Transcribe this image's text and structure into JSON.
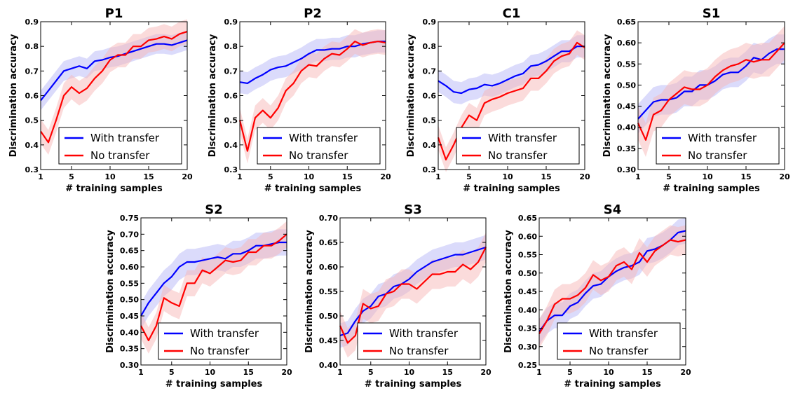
{
  "figure": {
    "ylabel": "Discrimination accuracy",
    "xlabel": "# training samples",
    "legend": [
      "With transfer",
      "No transfer"
    ],
    "colors": {
      "with_transfer": "#0000ff",
      "no_transfer": "#ff0000",
      "with_band": "#b8b8f8",
      "no_band": "#f8b8b8"
    }
  },
  "chart_data": [
    {
      "type": "line",
      "title": "P1",
      "xlabel": "# training samples",
      "ylabel": "Discrimination accuracy",
      "x": [
        1,
        2,
        3,
        4,
        5,
        6,
        7,
        8,
        9,
        10,
        11,
        12,
        13,
        14,
        15,
        16,
        17,
        18,
        19,
        20
      ],
      "xlim": [
        1,
        20
      ],
      "xticks": [
        1,
        5,
        10,
        15,
        20
      ],
      "ylim": [
        0.3,
        0.9
      ],
      "yticks": [
        "0.3",
        "0.4",
        "0.5",
        "0.6",
        "0.7",
        "0.8",
        "0.9"
      ],
      "legend_position": "lower-right",
      "series": [
        {
          "name": "With transfer",
          "values": [
            0.58,
            0.62,
            0.66,
            0.7,
            0.71,
            0.72,
            0.71,
            0.74,
            0.745,
            0.755,
            0.76,
            0.77,
            0.78,
            0.79,
            0.8,
            0.81,
            0.81,
            0.805,
            0.815,
            0.825
          ],
          "band": 0.04
        },
        {
          "name": "No transfer",
          "values": [
            0.455,
            0.41,
            0.5,
            0.6,
            0.635,
            0.61,
            0.63,
            0.67,
            0.7,
            0.745,
            0.765,
            0.765,
            0.8,
            0.8,
            0.825,
            0.83,
            0.84,
            0.83,
            0.85,
            0.86
          ],
          "band": 0.05
        }
      ]
    },
    {
      "type": "line",
      "title": "P2",
      "xlabel": "# training samples",
      "ylabel": "Discrimination accuracy",
      "x": [
        1,
        2,
        3,
        4,
        5,
        6,
        7,
        8,
        9,
        10,
        11,
        12,
        13,
        14,
        15,
        16,
        17,
        18,
        19,
        20
      ],
      "xlim": [
        1,
        20
      ],
      "xticks": [
        1,
        5,
        10,
        15,
        20
      ],
      "ylim": [
        0.3,
        0.9
      ],
      "yticks": [
        "0.3",
        "0.4",
        "0.5",
        "0.6",
        "0.7",
        "0.8",
        "0.9"
      ],
      "legend_position": "lower-right",
      "series": [
        {
          "name": "With transfer",
          "values": [
            0.655,
            0.65,
            0.67,
            0.685,
            0.705,
            0.715,
            0.72,
            0.735,
            0.75,
            0.77,
            0.785,
            0.785,
            0.79,
            0.79,
            0.8,
            0.8,
            0.81,
            0.815,
            0.82,
            0.82
          ],
          "band": 0.045
        },
        {
          "name": "No transfer",
          "values": [
            0.5,
            0.375,
            0.51,
            0.54,
            0.51,
            0.55,
            0.62,
            0.65,
            0.7,
            0.725,
            0.72,
            0.75,
            0.77,
            0.765,
            0.79,
            0.82,
            0.805,
            0.815,
            0.82,
            0.815
          ],
          "band": 0.05
        }
      ]
    },
    {
      "type": "line",
      "title": "C1",
      "xlabel": "# training samples",
      "ylabel": "Discrimination accuracy",
      "x": [
        1,
        2,
        3,
        4,
        5,
        6,
        7,
        8,
        9,
        10,
        11,
        12,
        13,
        14,
        15,
        16,
        17,
        18,
        19,
        20
      ],
      "xlim": [
        1,
        20
      ],
      "xticks": [
        1,
        5,
        10,
        15,
        20
      ],
      "ylim": [
        0.3,
        0.9
      ],
      "yticks": [
        "0.3",
        "0.4",
        "0.5",
        "0.6",
        "0.7",
        "0.8",
        "0.9"
      ],
      "legend_position": "lower-right",
      "series": [
        {
          "name": "With transfer",
          "values": [
            0.66,
            0.64,
            0.615,
            0.61,
            0.625,
            0.63,
            0.645,
            0.64,
            0.65,
            0.665,
            0.68,
            0.69,
            0.72,
            0.725,
            0.74,
            0.76,
            0.78,
            0.78,
            0.8,
            0.8
          ],
          "band": 0.045
        },
        {
          "name": "No transfer",
          "values": [
            0.43,
            0.34,
            0.4,
            0.47,
            0.52,
            0.5,
            0.57,
            0.585,
            0.595,
            0.61,
            0.62,
            0.63,
            0.67,
            0.67,
            0.7,
            0.74,
            0.76,
            0.77,
            0.815,
            0.795
          ],
          "band": 0.05
        }
      ]
    },
    {
      "type": "line",
      "title": "S1",
      "xlabel": "# training samples",
      "ylabel": "Discrimination accuracy",
      "x": [
        1,
        2,
        3,
        4,
        5,
        6,
        7,
        8,
        9,
        10,
        11,
        12,
        13,
        14,
        15,
        16,
        17,
        18,
        19,
        20
      ],
      "xlim": [
        1,
        20
      ],
      "xticks": [
        1,
        5,
        10,
        15,
        20
      ],
      "ylim": [
        0.3,
        0.65
      ],
      "yticks": [
        "0.30",
        "0.35",
        "0.40",
        "0.45",
        "0.50",
        "0.55",
        "0.60",
        "0.65"
      ],
      "legend_position": "lower-right",
      "series": [
        {
          "name": "With transfer",
          "values": [
            0.42,
            0.44,
            0.46,
            0.465,
            0.465,
            0.47,
            0.485,
            0.485,
            0.5,
            0.5,
            0.51,
            0.525,
            0.53,
            0.53,
            0.545,
            0.565,
            0.56,
            0.575,
            0.585,
            0.585
          ],
          "band": 0.035
        },
        {
          "name": "No transfer",
          "values": [
            0.41,
            0.37,
            0.43,
            0.44,
            0.465,
            0.48,
            0.495,
            0.49,
            0.49,
            0.5,
            0.52,
            0.535,
            0.545,
            0.55,
            0.56,
            0.555,
            0.56,
            0.56,
            0.58,
            0.6
          ],
          "band": 0.04
        }
      ]
    },
    {
      "type": "line",
      "title": "S2",
      "xlabel": "# training samples",
      "ylabel": "Discrimination accuracy",
      "x": [
        1,
        2,
        3,
        4,
        5,
        6,
        7,
        8,
        9,
        10,
        11,
        12,
        13,
        14,
        15,
        16,
        17,
        18,
        19,
        20
      ],
      "xlim": [
        1,
        20
      ],
      "xticks": [
        1,
        5,
        10,
        15,
        20
      ],
      "ylim": [
        0.3,
        0.75
      ],
      "yticks": [
        "0.30",
        "0.35",
        "0.40",
        "0.45",
        "0.50",
        "0.55",
        "0.60",
        "0.65",
        "0.70",
        "0.75"
      ],
      "legend_position": "lower-right",
      "series": [
        {
          "name": "With transfer",
          "values": [
            0.45,
            0.49,
            0.52,
            0.55,
            0.57,
            0.6,
            0.615,
            0.615,
            0.62,
            0.625,
            0.63,
            0.625,
            0.64,
            0.64,
            0.65,
            0.665,
            0.665,
            0.67,
            0.675,
            0.675
          ],
          "band": 0.04
        },
        {
          "name": "No transfer",
          "values": [
            0.42,
            0.375,
            0.42,
            0.505,
            0.49,
            0.48,
            0.55,
            0.55,
            0.59,
            0.58,
            0.6,
            0.62,
            0.615,
            0.62,
            0.645,
            0.645,
            0.665,
            0.665,
            0.68,
            0.7
          ],
          "band": 0.04
        }
      ]
    },
    {
      "type": "line",
      "title": "S3",
      "xlabel": "# training samples",
      "ylabel": "Discrimination accuracy",
      "x": [
        1,
        2,
        3,
        4,
        5,
        6,
        7,
        8,
        9,
        10,
        11,
        12,
        13,
        14,
        15,
        16,
        17,
        18,
        19,
        20
      ],
      "xlim": [
        1,
        20
      ],
      "xticks": [
        1,
        5,
        10,
        15,
        20
      ],
      "ylim": [
        0.4,
        0.7
      ],
      "yticks": [
        "0.40",
        "0.45",
        "0.50",
        "0.55",
        "0.60",
        "0.65",
        "0.70"
      ],
      "legend_position": "lower-right",
      "series": [
        {
          "name": "With transfer",
          "values": [
            0.46,
            0.465,
            0.49,
            0.51,
            0.52,
            0.54,
            0.545,
            0.56,
            0.565,
            0.575,
            0.59,
            0.6,
            0.61,
            0.615,
            0.62,
            0.625,
            0.625,
            0.63,
            0.635,
            0.64
          ],
          "band": 0.025
        },
        {
          "name": "No transfer",
          "values": [
            0.48,
            0.445,
            0.46,
            0.525,
            0.515,
            0.52,
            0.545,
            0.55,
            0.565,
            0.565,
            0.555,
            0.57,
            0.585,
            0.585,
            0.59,
            0.59,
            0.605,
            0.595,
            0.61,
            0.64
          ],
          "band": 0.03
        }
      ]
    },
    {
      "type": "line",
      "title": "S4",
      "xlabel": "# training samples",
      "ylabel": "Discrimination accuracy",
      "x": [
        1,
        2,
        3,
        4,
        5,
        6,
        7,
        8,
        9,
        10,
        11,
        12,
        13,
        14,
        15,
        16,
        17,
        18,
        19,
        20
      ],
      "xlim": [
        1,
        20
      ],
      "xticks": [
        1,
        5,
        10,
        15,
        20
      ],
      "ylim": [
        0.25,
        0.65
      ],
      "yticks": [
        "0.25",
        "0.30",
        "0.35",
        "0.40",
        "0.45",
        "0.50",
        "0.55",
        "0.60",
        "0.65"
      ],
      "legend_position": "lower-right",
      "series": [
        {
          "name": "With transfer",
          "values": [
            0.34,
            0.37,
            0.385,
            0.385,
            0.41,
            0.42,
            0.445,
            0.465,
            0.47,
            0.49,
            0.505,
            0.515,
            0.52,
            0.53,
            0.56,
            0.565,
            0.575,
            0.59,
            0.61,
            0.615
          ],
          "band": 0.035
        },
        {
          "name": "No transfer",
          "values": [
            0.335,
            0.37,
            0.415,
            0.43,
            0.43,
            0.44,
            0.46,
            0.495,
            0.48,
            0.49,
            0.52,
            0.53,
            0.51,
            0.555,
            0.53,
            0.56,
            0.575,
            0.59,
            0.585,
            0.59
          ],
          "band": 0.04
        }
      ]
    }
  ]
}
